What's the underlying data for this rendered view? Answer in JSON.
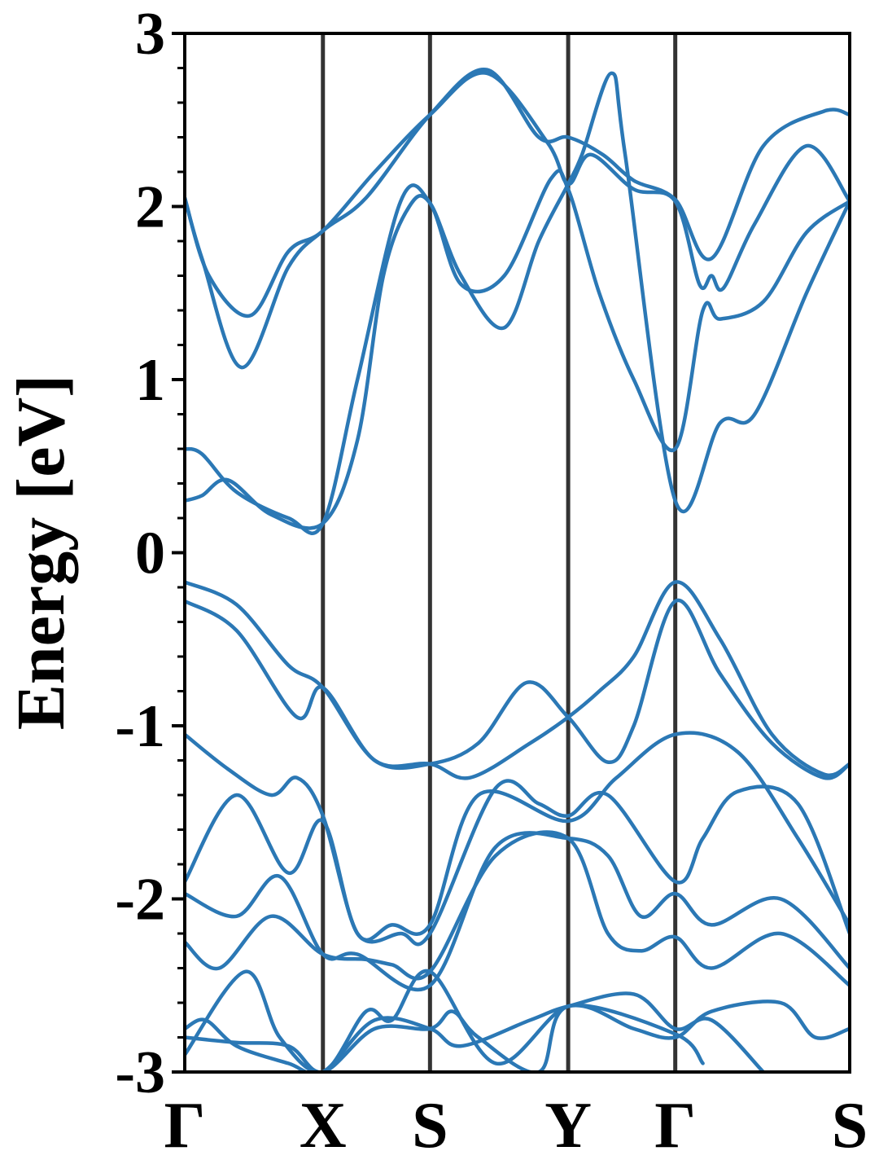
{
  "chart_data": {
    "type": "line",
    "title": "",
    "ylabel": "Energy [eV]",
    "xlabel": "",
    "ylim": [
      -3,
      3
    ],
    "xlim": [
      0,
      3.85
    ],
    "grid": false,
    "yticks": [
      -3,
      -2,
      -1,
      0,
      1,
      2,
      3
    ],
    "ytick_labels": [
      "-3",
      "-2",
      "-1",
      "0",
      "1",
      "2",
      "3"
    ],
    "high_symmetry_points": [
      {
        "label": "Γ",
        "x": 0.0
      },
      {
        "label": "X",
        "x": 0.8
      },
      {
        "label": "S",
        "x": 1.42
      },
      {
        "label": "Y",
        "x": 2.22
      },
      {
        "label": "Γ",
        "x": 2.84
      },
      {
        "label": "S",
        "x": 3.85
      }
    ],
    "colors": {
      "bands": "#2b78b5",
      "kpath_lines": "#333333",
      "axes": "#000000"
    },
    "series": [
      {
        "points": [
          [
            0,
            2.05
          ],
          [
            0.1,
            1.7
          ],
          [
            0.33,
            1.07
          ],
          [
            0.6,
            1.65
          ],
          [
            0.8,
            1.86
          ],
          [
            1.05,
            2.05
          ],
          [
            1.42,
            2.53
          ],
          [
            1.75,
            2.79
          ],
          [
            2.05,
            2.4
          ],
          [
            2.22,
            2.4
          ],
          [
            2.42,
            2.3
          ],
          [
            2.6,
            2.15
          ],
          [
            2.84,
            2.04
          ],
          [
            3.05,
            1.7
          ],
          [
            3.35,
            2.35
          ],
          [
            3.7,
            2.55
          ],
          [
            3.85,
            2.53
          ]
        ]
      },
      {
        "points": [
          [
            0,
            2.05
          ],
          [
            0.14,
            1.6
          ],
          [
            0.38,
            1.37
          ],
          [
            0.6,
            1.74
          ],
          [
            0.8,
            1.86
          ],
          [
            1.1,
            2.2
          ],
          [
            1.42,
            2.53
          ],
          [
            1.75,
            2.77
          ],
          [
            2.1,
            2.37
          ],
          [
            2.22,
            2.13
          ],
          [
            2.35,
            2.3
          ],
          [
            2.6,
            2.1
          ],
          [
            2.84,
            2.03
          ],
          [
            2.98,
            1.55
          ],
          [
            3.05,
            1.6
          ],
          [
            3.12,
            1.53
          ],
          [
            3.3,
            1.9
          ],
          [
            3.6,
            2.35
          ],
          [
            3.85,
            2.03
          ]
        ]
      },
      {
        "points": [
          [
            0,
            0.6
          ],
          [
            0.1,
            0.57
          ],
          [
            0.3,
            0.35
          ],
          [
            0.6,
            0.2
          ],
          [
            0.8,
            0.17
          ],
          [
            1.0,
            1.0
          ],
          [
            1.25,
            2.03
          ],
          [
            1.42,
            2.02
          ],
          [
            1.6,
            1.55
          ],
          [
            1.85,
            1.6
          ],
          [
            2.12,
            2.16
          ],
          [
            2.22,
            2.1
          ],
          [
            2.4,
            1.5
          ],
          [
            2.6,
            1.0
          ],
          [
            2.84,
            0.6
          ],
          [
            3.0,
            1.4
          ],
          [
            3.1,
            1.35
          ],
          [
            3.35,
            1.45
          ],
          [
            3.6,
            1.85
          ],
          [
            3.85,
            2.03
          ]
        ]
      },
      {
        "points": [
          [
            0,
            0.3
          ],
          [
            0.1,
            0.33
          ],
          [
            0.25,
            0.42
          ],
          [
            0.5,
            0.22
          ],
          [
            0.8,
            0.17
          ],
          [
            1.0,
            0.65
          ],
          [
            1.15,
            1.6
          ],
          [
            1.3,
            2.0
          ],
          [
            1.42,
            2.02
          ],
          [
            1.6,
            1.6
          ],
          [
            1.85,
            1.3
          ],
          [
            2.05,
            1.8
          ],
          [
            2.22,
            2.13
          ],
          [
            2.3,
            2.3
          ],
          [
            2.47,
            2.77
          ],
          [
            2.55,
            2.3
          ],
          [
            2.84,
            0.3
          ],
          [
            3.1,
            0.75
          ],
          [
            3.3,
            0.8
          ],
          [
            3.6,
            1.5
          ],
          [
            3.85,
            2.03
          ]
        ]
      },
      {
        "points": [
          [
            0,
            -0.17
          ],
          [
            0.3,
            -0.3
          ],
          [
            0.6,
            -0.65
          ],
          [
            0.8,
            -0.78
          ],
          [
            1.1,
            -1.2
          ],
          [
            1.42,
            -1.22
          ],
          [
            1.65,
            -1.3
          ],
          [
            2.0,
            -1.1
          ],
          [
            2.22,
            -0.95
          ],
          [
            2.4,
            -0.8
          ],
          [
            2.6,
            -0.6
          ],
          [
            2.84,
            -0.17
          ],
          [
            3.1,
            -0.5
          ],
          [
            3.4,
            -1.05
          ],
          [
            3.7,
            -1.28
          ],
          [
            3.85,
            -1.22
          ]
        ]
      },
      {
        "points": [
          [
            0,
            -0.28
          ],
          [
            0.3,
            -0.45
          ],
          [
            0.65,
            -0.95
          ],
          [
            0.8,
            -0.78
          ],
          [
            1.1,
            -1.2
          ],
          [
            1.42,
            -1.22
          ],
          [
            1.7,
            -1.1
          ],
          [
            1.98,
            -0.75
          ],
          [
            2.22,
            -0.95
          ],
          [
            2.45,
            -1.21
          ],
          [
            2.6,
            -1.0
          ],
          [
            2.84,
            -0.28
          ],
          [
            3.1,
            -0.7
          ],
          [
            3.4,
            -1.1
          ],
          [
            3.7,
            -1.3
          ],
          [
            3.85,
            -1.22
          ]
        ]
      },
      {
        "points": [
          [
            0,
            -1.05
          ],
          [
            0.25,
            -1.25
          ],
          [
            0.5,
            -1.4
          ],
          [
            0.65,
            -1.3
          ],
          [
            0.8,
            -1.52
          ],
          [
            1.0,
            -2.2
          ],
          [
            1.2,
            -2.15
          ],
          [
            1.42,
            -2.15
          ],
          [
            1.7,
            -1.4
          ],
          [
            2.22,
            -1.55
          ],
          [
            2.5,
            -1.3
          ],
          [
            2.84,
            -1.05
          ],
          [
            3.2,
            -1.15
          ],
          [
            3.55,
            -1.65
          ],
          [
            3.85,
            -2.15
          ]
        ]
      },
      {
        "points": [
          [
            0,
            -1.9
          ],
          [
            0.3,
            -1.4
          ],
          [
            0.6,
            -1.85
          ],
          [
            0.8,
            -1.55
          ],
          [
            1.0,
            -2.2
          ],
          [
            1.25,
            -2.2
          ],
          [
            1.42,
            -2.2
          ],
          [
            1.8,
            -1.36
          ],
          [
            2.05,
            -1.45
          ],
          [
            2.22,
            -1.52
          ],
          [
            2.45,
            -1.4
          ],
          [
            2.84,
            -1.9
          ],
          [
            3.0,
            -1.65
          ],
          [
            3.2,
            -1.38
          ],
          [
            3.55,
            -1.45
          ],
          [
            3.85,
            -2.2
          ]
        ]
      },
      {
        "points": [
          [
            0,
            -1.97
          ],
          [
            0.3,
            -2.1
          ],
          [
            0.55,
            -1.87
          ],
          [
            0.8,
            -2.32
          ],
          [
            1.0,
            -2.32
          ],
          [
            1.42,
            -2.5
          ],
          [
            1.8,
            -1.7
          ],
          [
            2.22,
            -1.65
          ],
          [
            2.45,
            -1.75
          ],
          [
            2.64,
            -2.1
          ],
          [
            2.84,
            -1.97
          ],
          [
            3.05,
            -2.15
          ],
          [
            3.45,
            -2.0
          ],
          [
            3.85,
            -2.4
          ]
        ]
      },
      {
        "points": [
          [
            0,
            -2.25
          ],
          [
            0.2,
            -2.4
          ],
          [
            0.5,
            -2.1
          ],
          [
            0.8,
            -2.32
          ],
          [
            1.05,
            -2.35
          ],
          [
            1.2,
            -2.38
          ],
          [
            1.42,
            -2.42
          ],
          [
            1.8,
            -1.75
          ],
          [
            2.22,
            -1.65
          ],
          [
            2.45,
            -2.2
          ],
          [
            2.64,
            -2.3
          ],
          [
            2.84,
            -2.22
          ],
          [
            3.05,
            -2.4
          ],
          [
            3.45,
            -2.2
          ],
          [
            3.85,
            -2.5
          ]
        ]
      },
      {
        "points": [
          [
            0,
            -2.9
          ],
          [
            0.35,
            -2.42
          ],
          [
            0.55,
            -2.8
          ],
          [
            0.8,
            -3.0
          ],
          [
            1.05,
            -2.65
          ],
          [
            1.2,
            -2.7
          ],
          [
            1.42,
            -2.42
          ],
          [
            1.8,
            -2.95
          ],
          [
            2.22,
            -2.62
          ],
          [
            2.6,
            -2.75
          ],
          [
            2.84,
            -2.8
          ],
          [
            3.05,
            -2.65
          ],
          [
            3.45,
            -2.6
          ],
          [
            3.65,
            -2.8
          ],
          [
            3.85,
            -2.75
          ]
        ]
      },
      {
        "points": [
          [
            0,
            -2.75
          ],
          [
            0.12,
            -2.7
          ],
          [
            0.3,
            -2.85
          ],
          [
            0.6,
            -2.95
          ],
          [
            0.8,
            -3.0
          ],
          [
            1.1,
            -2.7
          ],
          [
            1.42,
            -2.75
          ],
          [
            1.6,
            -2.85
          ],
          [
            2.0,
            -2.7
          ],
          [
            2.22,
            -2.62
          ],
          [
            2.6,
            -2.55
          ],
          [
            2.84,
            -2.75
          ],
          [
            3.05,
            -2.7
          ],
          [
            3.35,
            -3.0
          ]
        ]
      },
      {
        "points": [
          [
            0,
            -2.8
          ],
          [
            0.3,
            -2.83
          ],
          [
            0.6,
            -2.85
          ],
          [
            0.8,
            -3.0
          ],
          [
            1.1,
            -2.75
          ],
          [
            1.42,
            -2.75
          ],
          [
            1.55,
            -2.65
          ],
          [
            1.7,
            -2.8
          ],
          [
            2.05,
            -3.0
          ],
          [
            2.22,
            -2.62
          ],
          [
            2.84,
            -2.78
          ],
          [
            3.0,
            -2.95
          ]
        ]
      }
    ]
  }
}
